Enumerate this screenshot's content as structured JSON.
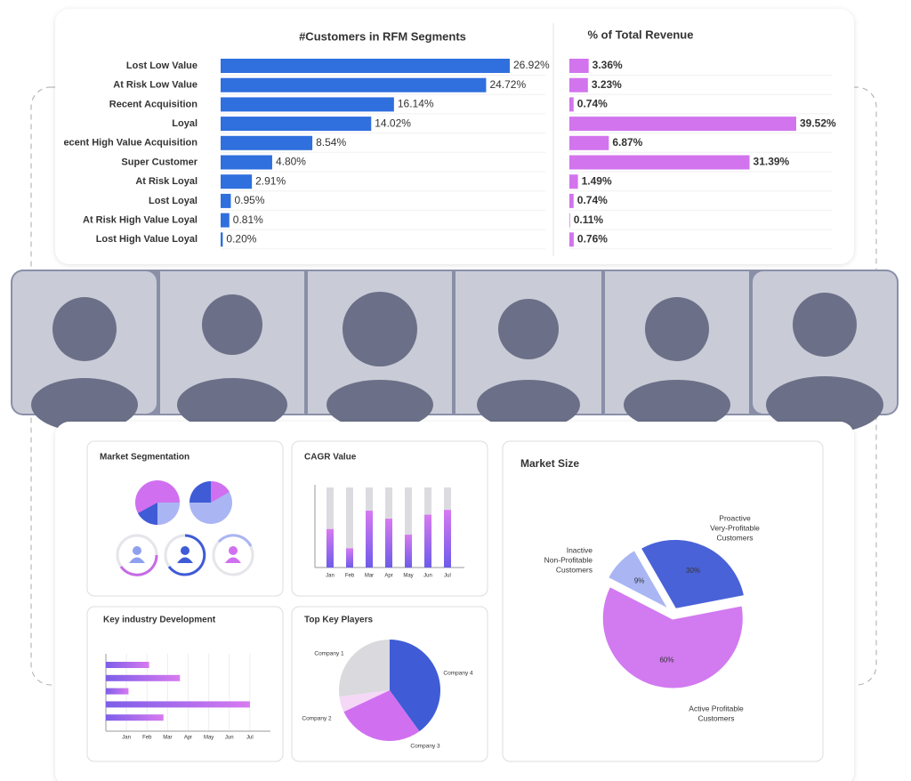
{
  "chart_data": [
    {
      "type": "hbar",
      "title": "#Customers in RFM Segments",
      "color": "#2f6fde",
      "categories": [
        "Lost Low Value",
        "At Risk Low Value",
        "Recent Acquisition",
        "Loyal",
        "ecent High Value Acquisition",
        "Super Customer",
        "At Risk Loyal",
        "Lost Loyal",
        "At Risk High Value Loyal",
        "Lost High Value Loyal"
      ],
      "values": [
        26.92,
        24.72,
        16.14,
        14.02,
        8.54,
        4.8,
        2.91,
        0.95,
        0.81,
        0.2
      ],
      "value_labels": [
        "26.92%",
        "24.72%",
        "16.14%",
        "14.02%",
        "8.54%",
        "4.80%",
        "2.91%",
        "0.95%",
        "0.81%",
        "0.20%"
      ]
    },
    {
      "type": "hbar",
      "title": "% of Total Revenue",
      "color": "#d274ee",
      "values": [
        3.36,
        3.23,
        0.74,
        39.52,
        6.87,
        31.39,
        1.49,
        0.74,
        0.11,
        0.76
      ],
      "value_labels": [
        "3.36%",
        "3.23%",
        "0.74%",
        "39.52%",
        "6.87%",
        "31.39%",
        "1.49%",
        "0.74%",
        "0.11%",
        "0.76%"
      ]
    },
    {
      "type": "bar",
      "title": "CAGR Value",
      "color": "#9b5ff0",
      "categories": [
        "Jan",
        "Feb",
        "Mar",
        "Apr",
        "May",
        "Jun",
        "Jul"
      ],
      "values": [
        48,
        24,
        71,
        61,
        41,
        66,
        72
      ],
      "ylim": [
        0,
        100
      ]
    },
    {
      "type": "hbar-mini",
      "title": "Key industry Development",
      "categories": [
        null,
        null,
        null,
        null,
        null
      ],
      "values": [
        2.1,
        3.6,
        1.1,
        7.0,
        2.8
      ],
      "xlim": [
        0,
        8
      ],
      "xticks": [
        {
          "value": 1,
          "label": "Jan"
        },
        {
          "value": 2,
          "label": "Feb"
        },
        {
          "value": 3,
          "label": "Mar"
        },
        {
          "value": 4,
          "label": "Apr"
        },
        {
          "value": 5,
          "label": "May"
        },
        {
          "value": 6,
          "label": "Jun"
        },
        {
          "value": 7,
          "label": "Jul"
        }
      ],
      "grid": true
    },
    {
      "type": "pie",
      "title": "Top Key Players",
      "categories": [
        "Company 1",
        "Company 2",
        "Company 3",
        "Company 4"
      ],
      "values": [
        27,
        5,
        28,
        40
      ],
      "colors": [
        "#d9d9de",
        "#f4d8f6",
        "#d070f0",
        "#3f5bd6"
      ]
    },
    {
      "type": "pie-exploded",
      "title": "Market Size",
      "categories": [
        [
          "Proactive",
          "Very-Profitable",
          "Customers"
        ],
        [
          "Active Profitable",
          "Customers"
        ],
        [
          "Inactive",
          "Non-Profitable",
          "Customers"
        ]
      ],
      "values": [
        30,
        60,
        9
      ],
      "value_labels": [
        "30%",
        "60%",
        "9%"
      ],
      "colors": [
        "#4a62d8",
        "#d27af0",
        "#aab6f3"
      ]
    }
  ],
  "cards": [
    {
      "title": "Market Segmentation"
    }
  ]
}
